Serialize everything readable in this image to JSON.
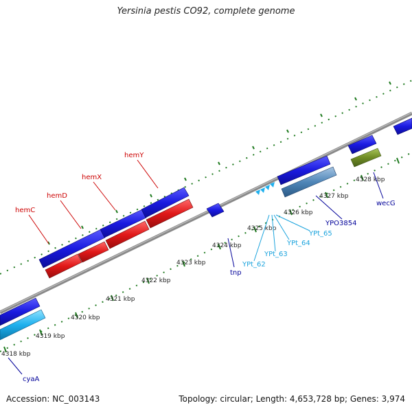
{
  "title": "Yersinia pestis CO92, complete genome",
  "footer": {
    "accession": "Accession: NC_003143",
    "summary": "Topology: circular; Length: 4,653,728 bp; Genes: 3,974"
  },
  "colors": {
    "background": "#ffffff",
    "backbone": "#8a8a8a",
    "forward_cds": "#1a1ae0",
    "reverse_cds": "#e01818",
    "light_blue_feature": "#1fb0ee",
    "steel_blue_feature": "#4f86b8",
    "olive_feature": "#6f8c24",
    "ticks": "#1f7a1f",
    "label_red": "#cc0000",
    "label_blue": "#000099",
    "label_cyan": "#1aa3dd"
  },
  "ticks": [
    {
      "label": "4318 kbp"
    },
    {
      "label": "4319 kbp"
    },
    {
      "label": "4320 kbp"
    },
    {
      "label": "4321 kbp"
    },
    {
      "label": "4322 kbp"
    },
    {
      "label": "4323 kbp"
    },
    {
      "label": "4324 kbp"
    },
    {
      "label": "4325 kbp"
    },
    {
      "label": "4326 kbp"
    },
    {
      "label": "4327 kbp"
    },
    {
      "label": "4328 kbp"
    }
  ],
  "gene_labels": [
    {
      "name": "hemC",
      "color": "red"
    },
    {
      "name": "hemD",
      "color": "red"
    },
    {
      "name": "hemX",
      "color": "red"
    },
    {
      "name": "hemY",
      "color": "red"
    },
    {
      "name": "tnp",
      "color": "blue"
    },
    {
      "name": "YPt_62",
      "color": "cyan"
    },
    {
      "name": "YPt_63",
      "color": "cyan"
    },
    {
      "name": "YPt_64",
      "color": "cyan"
    },
    {
      "name": "YPt_65",
      "color": "cyan"
    },
    {
      "name": "YPO3854",
      "color": "blue"
    },
    {
      "name": "wecG",
      "color": "blue"
    },
    {
      "name": "cyaA",
      "color": "blue"
    }
  ]
}
